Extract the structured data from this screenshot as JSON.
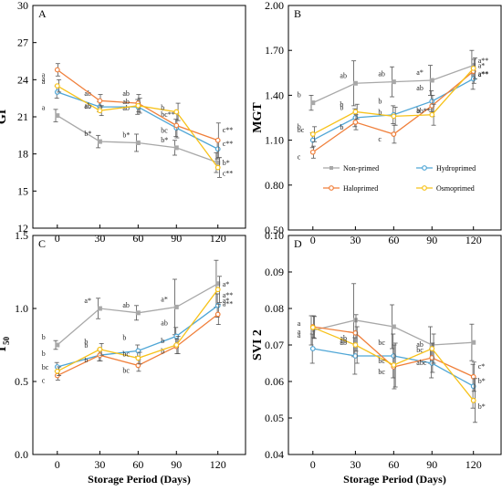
{
  "chart_data": [
    {
      "type": "line",
      "panel": "A",
      "ylabel": "GI",
      "xlabel": "",
      "ylim": [
        12,
        30
      ],
      "yticks": [
        "12",
        "15",
        "18",
        "21",
        "24",
        "27",
        "30"
      ],
      "categories": [
        "0",
        "30",
        "60",
        "90",
        "120"
      ],
      "series": [
        {
          "name": "Non-primed",
          "color": "#a8a8a8",
          "marker": "square",
          "values": [
            21.1,
            19.0,
            18.9,
            18.5,
            17.3
          ],
          "errors": [
            0.5,
            0.5,
            0.7,
            0.6,
            0.8
          ],
          "labels": [
            "a",
            "b*",
            "b*",
            "b*",
            "b*"
          ]
        },
        {
          "name": "Hydroprimed",
          "color": "#4fa6d6",
          "marker": "circle",
          "values": [
            23.0,
            21.8,
            21.8,
            20.1,
            18.4
          ],
          "errors": [
            0.5,
            0.4,
            0.6,
            0.7,
            0.8
          ],
          "labels": [
            "a",
            "ab",
            "ab",
            "bc**",
            "c**"
          ]
        },
        {
          "name": "Haloprimed",
          "color": "#f07f3a",
          "marker": "circle",
          "values": [
            24.8,
            22.3,
            22.1,
            20.3,
            19.1
          ],
          "errors": [
            0.5,
            0.5,
            0.7,
            1.0,
            1.4
          ],
          "labels": [
            "a",
            "ab",
            "ab",
            "bc",
            "c**"
          ]
        },
        {
          "name": "Osmoprimed",
          "color": "#f7c21a",
          "marker": "circle",
          "values": [
            23.5,
            21.5,
            21.9,
            21.4,
            16.9
          ],
          "errors": [
            0.5,
            0.4,
            0.6,
            0.7,
            0.8
          ],
          "labels": [
            "a",
            "ab",
            "ab",
            "b",
            "c**"
          ]
        }
      ]
    },
    {
      "type": "line",
      "panel": "B",
      "ylabel": "MGT",
      "xlabel": "",
      "ylim": [
        0.5,
        2.0
      ],
      "yticks": [
        "0.50",
        "0.80",
        "1.10",
        "1.40",
        "1.70",
        "2.00"
      ],
      "categories": [
        "0",
        "30",
        "60",
        "90",
        "120"
      ],
      "legend": [
        "Non-primed",
        "Hydroprimed",
        "Haloprimed",
        "Osmoprimed"
      ],
      "series": [
        {
          "name": "Non-primed",
          "color": "#a8a8a8",
          "marker": "square",
          "values": [
            1.35,
            1.48,
            1.49,
            1.5,
            1.6
          ],
          "errors": [
            0.05,
            0.15,
            0.1,
            0.1,
            0.1
          ],
          "labels": [
            "b",
            "ab",
            "ab",
            "a*",
            "a*"
          ]
        },
        {
          "name": "Hydroprimed",
          "color": "#4fa6d6",
          "marker": "circle",
          "values": [
            1.1,
            1.25,
            1.27,
            1.36,
            1.51
          ],
          "errors": [
            0.05,
            0.06,
            0.06,
            0.07,
            0.07
          ],
          "labels": [
            "b",
            "b",
            "b",
            "ab",
            "a**"
          ]
        },
        {
          "name": "Haloprimed",
          "color": "#f07f3a",
          "marker": "circle",
          "values": [
            1.02,
            1.22,
            1.14,
            1.33,
            1.56
          ],
          "errors": [
            0.04,
            0.05,
            0.06,
            0.07,
            0.08
          ],
          "labels": [
            "c",
            "b",
            "c",
            "ab**",
            "a**"
          ]
        },
        {
          "name": "Osmoprimed",
          "color": "#f7c21a",
          "marker": "circle",
          "values": [
            1.14,
            1.29,
            1.26,
            1.27,
            1.58
          ],
          "errors": [
            0.05,
            0.05,
            0.06,
            0.07,
            0.07
          ],
          "labels": [
            "bc",
            "b",
            "b",
            "b",
            "a**"
          ]
        }
      ]
    },
    {
      "type": "line",
      "panel": "C",
      "ylabel": "T",
      "ylabel_sub": "50",
      "xlabel": "Storage Period (Days)",
      "ylim": [
        0.0,
        1.5
      ],
      "yticks": [
        "0.0",
        "0.5",
        "1.0",
        "1.5"
      ],
      "categories": [
        "0",
        "30",
        "60",
        "90",
        "120"
      ],
      "series": [
        {
          "name": "Non-primed",
          "color": "#a8a8a8",
          "marker": "square",
          "values": [
            0.75,
            1.0,
            0.97,
            1.01,
            1.17
          ],
          "errors": [
            0.03,
            0.07,
            0.05,
            0.19,
            0.16
          ],
          "labels": [
            "b",
            "a*",
            "ab",
            "a*",
            "a*"
          ]
        },
        {
          "name": "Hydroprimed",
          "color": "#4fa6d6",
          "marker": "circle",
          "values": [
            0.6,
            0.68,
            0.71,
            0.81,
            1.02
          ],
          "errors": [
            0.03,
            0.04,
            0.04,
            0.06,
            0.08
          ],
          "labels": [
            "b",
            "b",
            "b",
            "ab",
            "a*"
          ]
        },
        {
          "name": "Haloprimed",
          "color": "#f07f3a",
          "marker": "circle",
          "values": [
            0.54,
            0.68,
            0.61,
            0.74,
            0.96
          ],
          "errors": [
            0.03,
            0.04,
            0.04,
            0.05,
            0.07
          ],
          "labels": [
            "c",
            "b",
            "bc",
            "b",
            "a**"
          ]
        },
        {
          "name": "Osmoprimed",
          "color": "#f7c21a",
          "marker": "circle",
          "values": [
            0.57,
            0.72,
            0.66,
            0.75,
            1.13
          ],
          "errors": [
            0.03,
            0.04,
            0.04,
            0.06,
            0.09
          ],
          "labels": [
            "bc",
            "b",
            "bc",
            "b",
            "a**"
          ]
        }
      ]
    },
    {
      "type": "line",
      "panel": "D",
      "ylabel": "SVI 2",
      "xlabel": "Storage Period (Days)",
      "ylim": [
        0.04,
        0.1
      ],
      "yticks": [
        "0.04",
        "0.05",
        "0.06",
        "0.07",
        "0.08",
        "0.09",
        "0.10"
      ],
      "categories": [
        "0",
        "30",
        "60",
        "90",
        "120"
      ],
      "series": [
        {
          "name": "Non-primed",
          "color": "#a8a8a8",
          "marker": "square",
          "values": [
            0.074,
            0.0768,
            0.075,
            0.07,
            0.0707
          ],
          "errors": [
            0.004,
            0.01,
            0.006,
            0.005,
            0.005
          ],
          "labels": [
            "",
            "",
            "",
            "",
            ""
          ]
        },
        {
          "name": "Hydroprimed",
          "color": "#4fa6d6",
          "marker": "circle",
          "values": [
            0.069,
            0.067,
            0.067,
            0.065,
            0.0587
          ],
          "errors": [
            0.004,
            0.005,
            0.006,
            0.004,
            0.006
          ],
          "labels": [
            "a",
            "ab",
            "bc",
            "bc",
            "b*"
          ]
        },
        {
          "name": "Haloprimed",
          "color": "#f07f3a",
          "marker": "circle",
          "values": [
            0.075,
            0.0733,
            0.064,
            0.0665,
            0.0613
          ],
          "errors": [
            0.003,
            0.005,
            0.006,
            0.004,
            0.004
          ],
          "labels": [
            "a",
            "ab",
            "bc",
            "abc",
            "c*"
          ]
        },
        {
          "name": "Osmoprimed",
          "color": "#f7c21a",
          "marker": "circle",
          "values": [
            0.0748,
            0.07,
            0.0645,
            0.069,
            0.0548
          ],
          "errors": [
            0.003,
            0.005,
            0.006,
            0.004,
            0.006
          ],
          "labels": [
            "a",
            "ab",
            "bc",
            "ab",
            "b*"
          ]
        }
      ]
    }
  ]
}
